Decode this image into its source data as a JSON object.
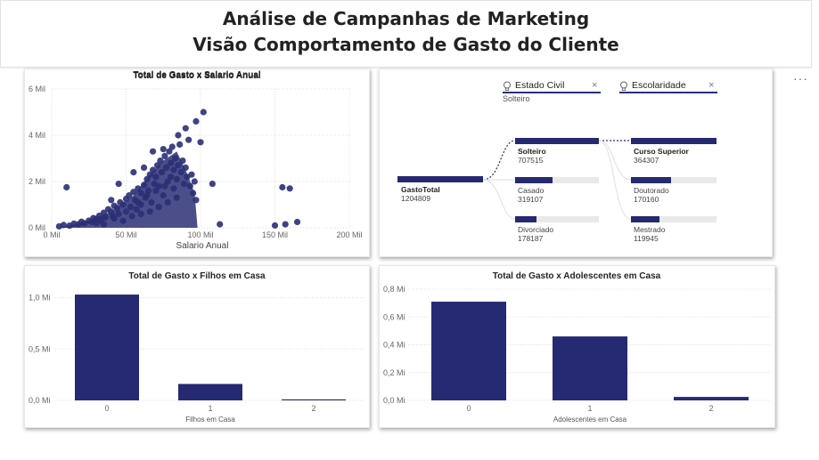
{
  "header": {
    "title_line1": "Análise de Campanhas de Marketing",
    "title_line2": "Visão Comportamento de Gasto do Cliente"
  },
  "more_options": "···",
  "colors": {
    "bar": "#262a72",
    "text": "#252423",
    "track": "#e9e9e9"
  },
  "scatter": {
    "title": "Total de Gasto x Salario Anual",
    "xlabel": "Salario Anual",
    "ytick_labels": [
      "0 Mil",
      "2 Mil",
      "4 Mil",
      "6 Mil"
    ],
    "xtick_labels": [
      "0 Mil",
      "50 Mil",
      "100 Mil",
      "150 Mil",
      "200 Mil"
    ]
  },
  "decomposition": {
    "filters": [
      {
        "label": "Estado Civil",
        "selected": "Solteiro"
      },
      {
        "label": "Escolaridade",
        "selected": ""
      }
    ],
    "root": {
      "name": "GastoTotal",
      "value": "1204809",
      "fraction": 1.0
    },
    "level1": [
      {
        "name": "Solteiro",
        "value": "707515",
        "fraction": 0.587,
        "selected": true
      },
      {
        "name": "Casado",
        "value": "319107",
        "fraction": 0.265,
        "selected": false
      },
      {
        "name": "Divorciado",
        "value": "178187",
        "fraction": 0.148,
        "selected": false
      }
    ],
    "level2": [
      {
        "name": "Curso Superior",
        "value": "364307",
        "fraction": 1.0,
        "selected": true
      },
      {
        "name": "Doutorado",
        "value": "170160",
        "fraction": 0.467,
        "selected": false
      },
      {
        "name": "Mestrado",
        "value": "119945",
        "fraction": 0.329,
        "selected": false
      }
    ]
  },
  "chart_data": [
    {
      "type": "scatter",
      "title": "Total de Gasto x Salario Anual",
      "xlabel": "Salario Anual",
      "ylabel": "",
      "xlim": [
        0,
        200000
      ],
      "ylim": [
        0,
        6000
      ],
      "grid": true,
      "points": [
        [
          5000,
          60
        ],
        [
          8000,
          120
        ],
        [
          12000,
          90
        ],
        [
          15000,
          180
        ],
        [
          18000,
          150
        ],
        [
          20000,
          260
        ],
        [
          22000,
          200
        ],
        [
          25000,
          310
        ],
        [
          27000,
          250
        ],
        [
          28000,
          420
        ],
        [
          30000,
          380
        ],
        [
          32000,
          520
        ],
        [
          33000,
          300
        ],
        [
          35000,
          650
        ],
        [
          36000,
          450
        ],
        [
          38000,
          800
        ],
        [
          40000,
          700
        ],
        [
          41000,
          500
        ],
        [
          42000,
          950
        ],
        [
          44000,
          850
        ],
        [
          45000,
          600
        ],
        [
          46000,
          1100
        ],
        [
          48000,
          1000
        ],
        [
          50000,
          1250
        ],
        [
          50000,
          700
        ],
        [
          52000,
          1400
        ],
        [
          53000,
          900
        ],
        [
          55000,
          1550
        ],
        [
          56000,
          1200
        ],
        [
          57000,
          800
        ],
        [
          58000,
          1700
        ],
        [
          60000,
          1500
        ],
        [
          60000,
          1000
        ],
        [
          62000,
          1850
        ],
        [
          63000,
          1300
        ],
        [
          64000,
          2100
        ],
        [
          65000,
          1600
        ],
        [
          66000,
          2300
        ],
        [
          67000,
          1100
        ],
        [
          68000,
          2500
        ],
        [
          69000,
          1900
        ],
        [
          70000,
          2200
        ],
        [
          71000,
          2700
        ],
        [
          72000,
          1800
        ],
        [
          73000,
          2900
        ],
        [
          74000,
          2400
        ],
        [
          75000,
          1400
        ],
        [
          76000,
          3100
        ],
        [
          77000,
          2600
        ],
        [
          78000,
          2000
        ],
        [
          79000,
          3300
        ],
        [
          80000,
          2800
        ],
        [
          80000,
          2200
        ],
        [
          81000,
          3500
        ],
        [
          82000,
          2500
        ],
        [
          83000,
          3000
        ],
        [
          84000,
          2100
        ],
        [
          85000,
          2700
        ],
        [
          86000,
          3600
        ],
        [
          87000,
          2400
        ],
        [
          88000,
          2900
        ],
        [
          89000,
          1900
        ],
        [
          90000,
          2600
        ],
        [
          91000,
          2200
        ],
        [
          92000,
          3800
        ],
        [
          93000,
          1800
        ],
        [
          94000,
          2300
        ],
        [
          95000,
          1500
        ],
        [
          96000,
          2000
        ],
        [
          97000,
          1200
        ],
        [
          100000,
          3700
        ],
        [
          102000,
          5000
        ],
        [
          108000,
          1900
        ],
        [
          113000,
          150
        ],
        [
          155000,
          1750
        ],
        [
          160000,
          1700
        ],
        [
          150000,
          100
        ],
        [
          157000,
          150
        ],
        [
          165000,
          250
        ],
        [
          10000,
          1750
        ],
        [
          40000,
          1200
        ],
        [
          45000,
          1900
        ],
        [
          55000,
          2400
        ],
        [
          62000,
          2600
        ],
        [
          68000,
          3300
        ],
        [
          75000,
          3400
        ],
        [
          90000,
          4300
        ],
        [
          85000,
          4000
        ],
        [
          97000,
          4600
        ],
        [
          30000,
          200
        ],
        [
          35000,
          150
        ],
        [
          42000,
          400
        ],
        [
          48000,
          300
        ],
        [
          54000,
          500
        ],
        [
          60000,
          600
        ],
        [
          66000,
          700
        ],
        [
          72000,
          900
        ],
        [
          78000,
          1100
        ],
        [
          84000,
          1300
        ],
        [
          58000,
          1100
        ],
        [
          64000,
          1400
        ],
        [
          70000,
          1600
        ],
        [
          76000,
          1800
        ],
        [
          82000,
          1700
        ]
      ]
    },
    {
      "type": "bar",
      "title": "Total de Gasto x Filhos em Casa",
      "xlabel": "Filhos em Casa",
      "ylabel": "",
      "categories": [
        "0",
        "1",
        "2"
      ],
      "values": [
        1030000,
        160000,
        10000
      ],
      "ylim": [
        0,
        1100000
      ],
      "ytick_values": [
        0,
        500000,
        1000000
      ],
      "ytick_labels": [
        "0,0 Mi",
        "0,5 Mi",
        "1,0 Mi"
      ]
    },
    {
      "type": "bar",
      "title": "Total de Gasto x Adolescentes em Casa",
      "xlabel": "Adolescentes em Casa",
      "ylabel": "",
      "categories": [
        "0",
        "1",
        "2"
      ],
      "values": [
        710000,
        460000,
        25000
      ],
      "ylim": [
        0,
        800000
      ],
      "ytick_values": [
        0,
        200000,
        400000,
        600000,
        800000
      ],
      "ytick_labels": [
        "0,0 Mi",
        "0,2 Mi",
        "0,4 Mi",
        "0,6 Mi",
        "0,8 Mi"
      ]
    }
  ]
}
